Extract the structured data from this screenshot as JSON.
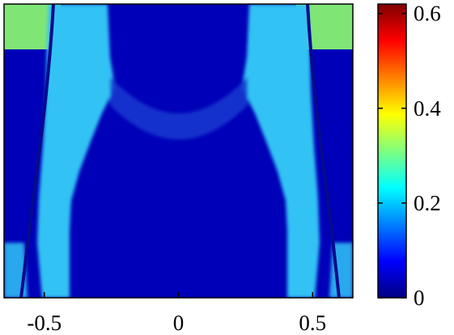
{
  "chart_data": {
    "type": "heatmap",
    "title": "",
    "xlabel": "",
    "ylabel": "",
    "xlim": [
      -0.65,
      0.65
    ],
    "x_ticks": [
      -0.5,
      0,
      0.5
    ],
    "x_tick_labels": [
      "-0.5",
      "0",
      "0.5"
    ],
    "colorbar": {
      "colormap": "jet",
      "range": [
        0,
        0.62
      ],
      "ticks": [
        0,
        0.2,
        0.4,
        0.6
      ],
      "tick_labels": [
        "0",
        "0.2",
        "0.4",
        "0.6"
      ]
    },
    "field_levels": {
      "background": 0.04,
      "upper_corner_panels": 0.27,
      "side_bands": 0.16,
      "central_dome": 0.06
    },
    "boundary_curves": [
      {
        "side": "left",
        "x_top": -0.48,
        "x_bottom": -0.6
      },
      {
        "side": "right",
        "x_top": 0.48,
        "x_bottom": 0.6
      }
    ],
    "colors": {
      "background": "#0000b8",
      "corner": "#7fe675",
      "band": "#33c3f4",
      "dome": "#1438d0",
      "curve": "#060a8c",
      "frame": "#000000"
    }
  }
}
